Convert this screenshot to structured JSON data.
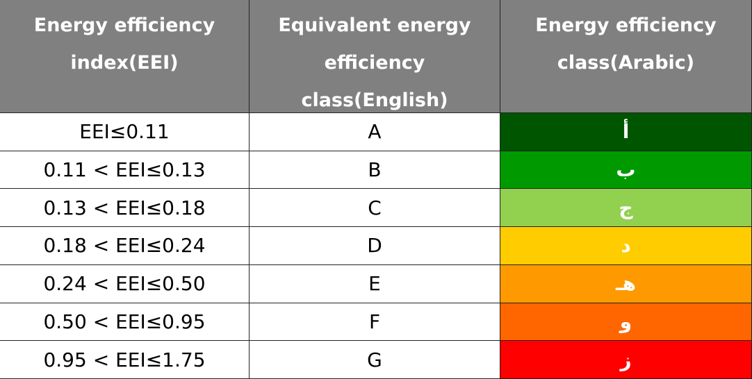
{
  "table": {
    "header": [
      [
        "Energy efficiency",
        "index(EEI)"
      ],
      [
        "Equivalent energy",
        "efficiency",
        "class(English)"
      ],
      [
        "Energy efficiency",
        "class(Arabic)"
      ]
    ],
    "rows": [
      [
        "EEI≤0.11",
        "A",
        "أ"
      ],
      [
        "0.11 < EEI≤0.13",
        "B",
        "ب"
      ],
      [
        "0.13 < EEI≤0.18",
        "C",
        "ج"
      ],
      [
        "0.18 < EEI≤0.24",
        "D",
        "د"
      ],
      [
        "0.24 < EEI≤0.50",
        "E",
        "هـ"
      ],
      [
        "0.50 < EEI≤0.95",
        "F",
        "و"
      ],
      [
        "0.95 < EEI≤1.75",
        "G",
        "ز"
      ]
    ],
    "arabic_colors": [
      "#005500",
      "#009a00",
      "#92d050",
      "#ffcc00",
      "#ff9900",
      "#ff6600",
      "#ff0000"
    ],
    "header_color": "#808080"
  }
}
